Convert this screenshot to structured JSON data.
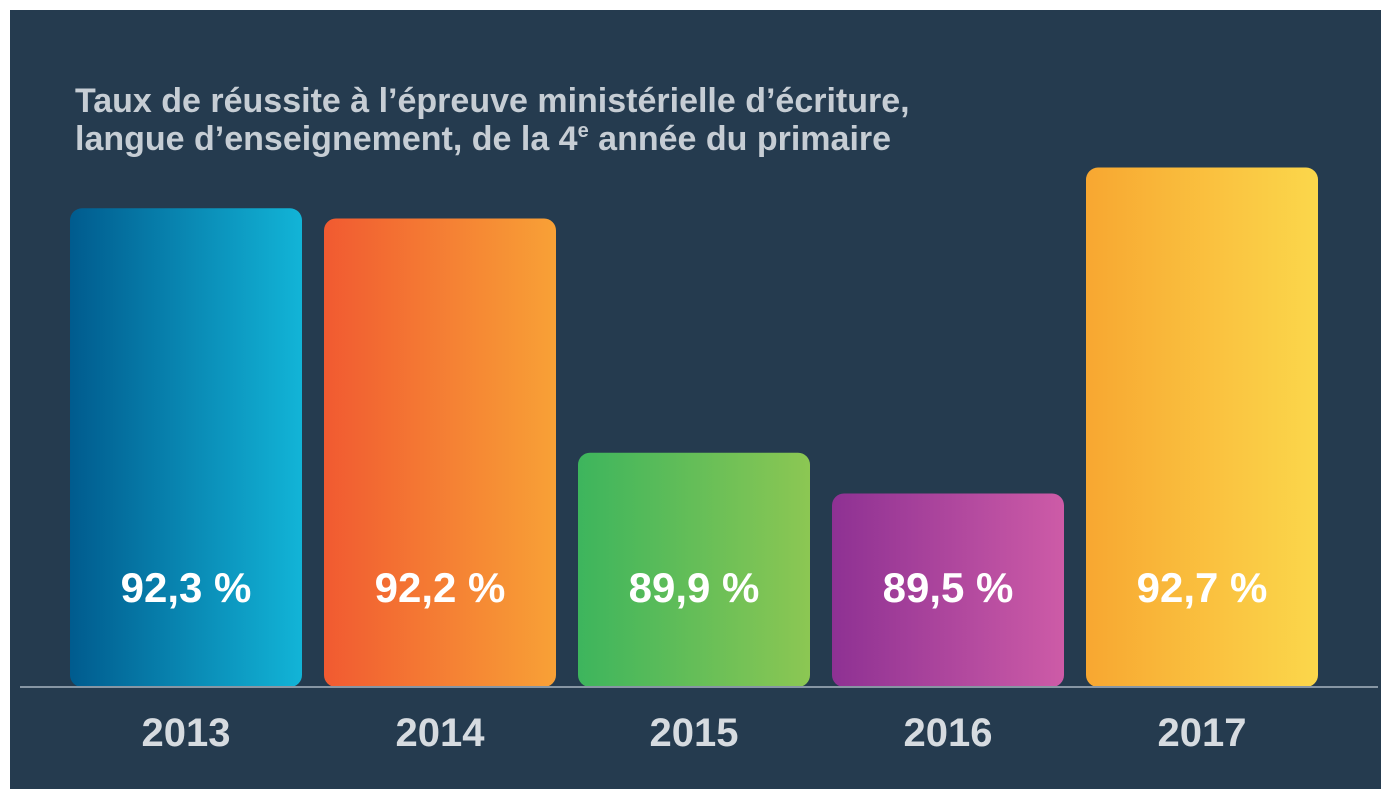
{
  "chart_data": {
    "type": "bar",
    "title": [
      "Taux de réussite à l’épreuve ministérielle d’écriture,",
      "langue d’enseignement, de la 4",
      "e",
      " année du primaire"
    ],
    "categories": [
      "2013",
      "2014",
      "2015",
      "2016",
      "2017"
    ],
    "values": [
      92.3,
      92.2,
      89.9,
      89.5,
      92.7
    ],
    "value_labels": [
      "92,3 %",
      "92,2 %",
      "89,9 %",
      "89,5 %",
      "92,7 %"
    ],
    "colors": [
      [
        "#005b8e",
        "#12b4d7"
      ],
      [
        "#f15a31",
        "#f8a136"
      ],
      [
        "#3db55d",
        "#8cc753"
      ],
      [
        "#8e3193",
        "#cd5ba7"
      ],
      [
        "#f8a731",
        "#fbd74b"
      ]
    ],
    "ylim": [
      87.6,
      93.0
    ]
  }
}
